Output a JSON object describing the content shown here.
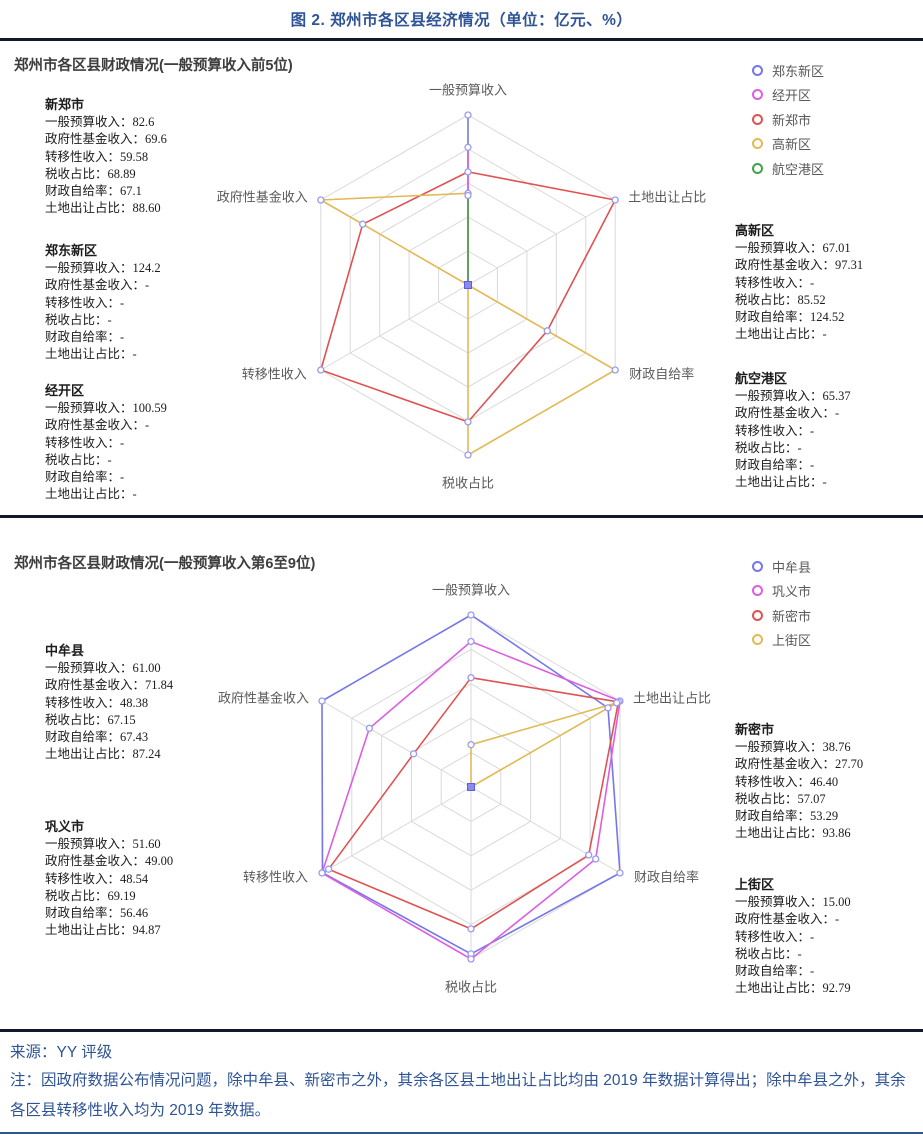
{
  "page": {
    "title": "图 2. 郑州市各区县经济情况（单位：亿元、%）",
    "source": "来源：YY 评级",
    "note": "注：因政府数据公布情况问题，除中牟县、新密市之外，其余各区县土地出让占比均由 2019 年数据计算得出；除中牟县之外，其余各区县转移性收入均为 2019 年数据。"
  },
  "chart_data": [
    {
      "type": "radar",
      "title": "郑州市各区县财政情况(一般预算收入前5位)",
      "axes": [
        "一般预算收入",
        "土地出让占比",
        "财政自给率",
        "税收占比",
        "转移性收入",
        "政府性基金收入"
      ],
      "levels": 5,
      "grid_color": "#d9d9d9",
      "series": [
        {
          "name": "郑东新区",
          "color": "#7577E8",
          "values": [
            124.2,
            null,
            null,
            null,
            null,
            null
          ]
        },
        {
          "name": "经开区",
          "color": "#DC5FE2",
          "values": [
            100.59,
            null,
            null,
            null,
            null,
            null
          ]
        },
        {
          "name": "新郑市",
          "color": "#E05252",
          "values": [
            82.6,
            88.6,
            67.1,
            68.89,
            59.58,
            69.6
          ]
        },
        {
          "name": "高新区",
          "color": "#E2B954",
          "values": [
            67.01,
            null,
            124.52,
            85.52,
            null,
            97.31
          ]
        },
        {
          "name": "航空港区",
          "color": "#43A04B",
          "values": [
            65.37,
            null,
            null,
            null,
            null,
            null
          ]
        }
      ],
      "info_blocks": {
        "left": [
          {
            "name": "新郑市",
            "lines": [
              {
                "label": "一般预算收入",
                "value": "82.6"
              },
              {
                "label": "政府性基金收入",
                "value": "69.6"
              },
              {
                "label": "转移性收入",
                "value": "59.58"
              },
              {
                "label": "税收占比",
                "value": "68.89"
              },
              {
                "label": "财政自给率",
                "value": "67.1"
              },
              {
                "label": "土地出让占比",
                "value": "88.60"
              }
            ]
          },
          {
            "name": "郑东新区",
            "lines": [
              {
                "label": "一般预算收入",
                "value": "124.2"
              },
              {
                "label": "政府性基金收入",
                "value": "-"
              },
              {
                "label": "转移性收入",
                "value": "-"
              },
              {
                "label": "税收占比",
                "value": "-"
              },
              {
                "label": "财政自给率",
                "value": "-"
              },
              {
                "label": "土地出让占比",
                "value": "-"
              }
            ]
          },
          {
            "name": "经开区",
            "lines": [
              {
                "label": "一般预算收入",
                "value": "100.59"
              },
              {
                "label": "政府性基金收入",
                "value": "-"
              },
              {
                "label": "转移性收入",
                "value": "-"
              },
              {
                "label": "税收占比",
                "value": "-"
              },
              {
                "label": "财政自给率",
                "value": "-"
              },
              {
                "label": "土地出让占比",
                "value": "-"
              }
            ]
          }
        ],
        "right": [
          {
            "name": "高新区",
            "lines": [
              {
                "label": "一般预算收入",
                "value": "67.01"
              },
              {
                "label": "政府性基金收入",
                "value": "97.31"
              },
              {
                "label": "转移性收入",
                "value": "-"
              },
              {
                "label": "税收占比",
                "value": "85.52"
              },
              {
                "label": "财政自给率",
                "value": "124.52"
              },
              {
                "label": "土地出让占比",
                "value": "-"
              }
            ]
          },
          {
            "name": "航空港区",
            "lines": [
              {
                "label": "一般预算收入",
                "value": "65.37"
              },
              {
                "label": "政府性基金收入",
                "value": "-"
              },
              {
                "label": "转移性收入",
                "value": "-"
              },
              {
                "label": "税收占比",
                "value": "-"
              },
              {
                "label": "财政自给率",
                "value": "-"
              },
              {
                "label": "土地出让占比",
                "value": "-"
              }
            ]
          }
        ]
      }
    },
    {
      "type": "radar",
      "title": "郑州市各区县财政情况(一般预算收入第6至9位)",
      "axes": [
        "一般预算收入",
        "土地出让占比",
        "财政自给率",
        "税收占比",
        "转移性收入",
        "政府性基金收入"
      ],
      "levels": 5,
      "grid_color": "#d9d9d9",
      "series": [
        {
          "name": "中牟县",
          "color": "#7577E8",
          "values": [
            61.0,
            87.24,
            67.43,
            67.15,
            48.38,
            71.84
          ]
        },
        {
          "name": "巩义市",
          "color": "#DC5FE2",
          "values": [
            51.6,
            94.87,
            56.46,
            69.19,
            48.54,
            49.0
          ]
        },
        {
          "name": "新密市",
          "color": "#E05252",
          "values": [
            38.76,
            93.86,
            53.29,
            57.07,
            46.4,
            27.7
          ]
        },
        {
          "name": "上街区",
          "color": "#E2B954",
          "values": [
            15.0,
            92.79,
            null,
            null,
            null,
            null
          ]
        }
      ],
      "info_blocks": {
        "left": [
          {
            "name": "中牟县",
            "lines": [
              {
                "label": "一般预算收入",
                "value": "61.00"
              },
              {
                "label": "政府性基金收入",
                "value": "71.84"
              },
              {
                "label": "转移性收入",
                "value": "48.38"
              },
              {
                "label": "税收占比",
                "value": "67.15"
              },
              {
                "label": "财政自给率",
                "value": "67.43"
              },
              {
                "label": "土地出让占比",
                "value": "87.24"
              }
            ]
          },
          {
            "name": "巩义市",
            "lines": [
              {
                "label": "一般预算收入",
                "value": "51.60"
              },
              {
                "label": "政府性基金收入",
                "value": "49.00"
              },
              {
                "label": "转移性收入",
                "value": "48.54"
              },
              {
                "label": "税收占比",
                "value": "69.19"
              },
              {
                "label": "财政自给率",
                "value": "56.46"
              },
              {
                "label": "土地出让占比",
                "value": "94.87"
              }
            ]
          }
        ],
        "right": [
          {
            "name": "新密市",
            "lines": [
              {
                "label": "一般预算收入",
                "value": "38.76"
              },
              {
                "label": "政府性基金收入",
                "value": "27.70"
              },
              {
                "label": "转移性收入",
                "value": "46.40"
              },
              {
                "label": "税收占比",
                "value": "57.07"
              },
              {
                "label": "财政自给率",
                "value": "53.29"
              },
              {
                "label": "土地出让占比",
                "value": "93.86"
              }
            ]
          },
          {
            "name": "上街区",
            "lines": [
              {
                "label": "一般预算收入",
                "value": "15.00"
              },
              {
                "label": "政府性基金收入",
                "value": "-"
              },
              {
                "label": "转移性收入",
                "value": "-"
              },
              {
                "label": "税收占比",
                "value": "-"
              },
              {
                "label": "财政自给率",
                "value": "-"
              },
              {
                "label": "土地出让占比",
                "value": "92.79"
              }
            ]
          }
        ]
      }
    }
  ]
}
